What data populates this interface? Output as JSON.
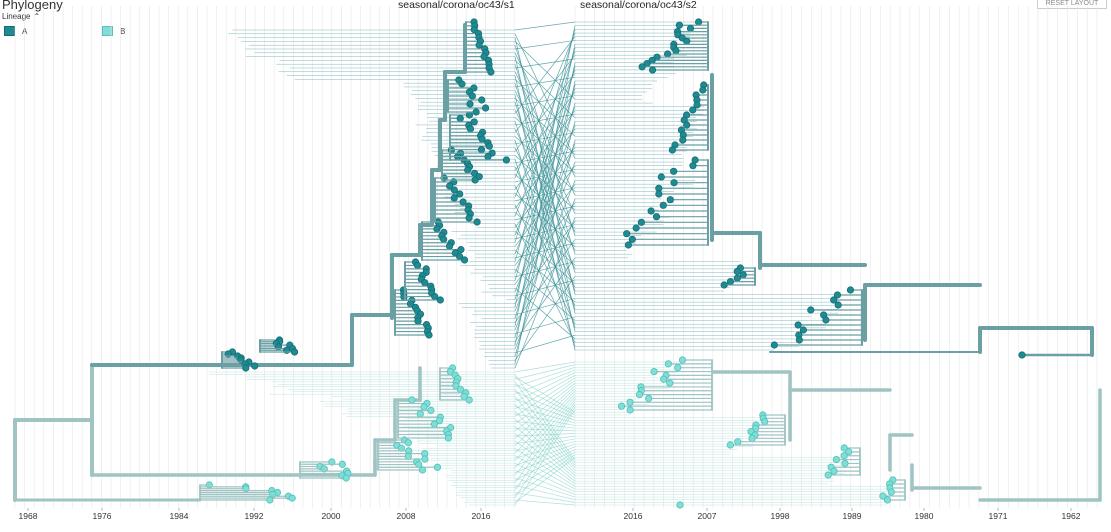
{
  "panel": {
    "title": "Phylogeny"
  },
  "color_by": {
    "label": "Lineage",
    "toggle_icon": "chevron-up-icon"
  },
  "legend": [
    {
      "label": "A",
      "color": "#1e8a92"
    },
    {
      "label": "B",
      "color": "#7fded7"
    }
  ],
  "trees": [
    {
      "name": "seasonal/corona/oc43/s1"
    },
    {
      "name": "seasonal/corona/oc43/s2"
    }
  ],
  "reset_button": {
    "label": "RESET LAYOUT"
  },
  "axis_left": {
    "ticks": [
      "1968",
      "1976",
      "1984",
      "1992",
      "2000",
      "2008",
      "2016"
    ]
  },
  "axis_right": {
    "ticks": [
      "2016",
      "2007",
      "1998",
      "1989",
      "1980",
      "1971",
      "1962"
    ]
  },
  "colors": {
    "lineage_a": "#1e8a92",
    "lineage_b": "#7fded7",
    "branch_a": "#6a9fa3",
    "branch_b": "#9fc4c3",
    "grid": "#e6e6e6"
  }
}
